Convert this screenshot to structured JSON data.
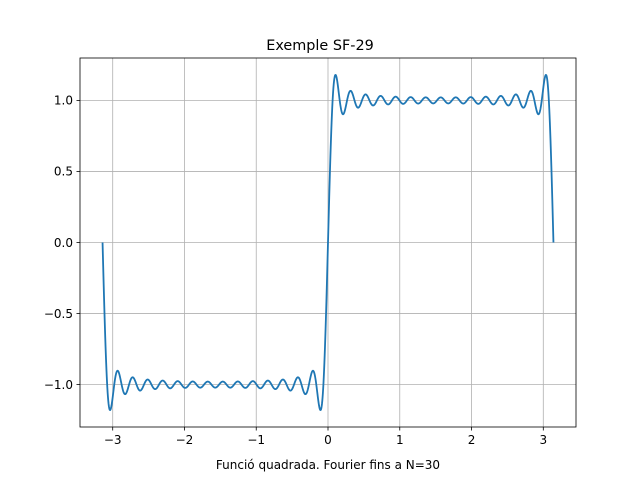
{
  "chart_data": {
    "type": "line",
    "title": "Exemple SF-29",
    "xlabel": "Funció quadrada. Fourier fins a N=30",
    "ylabel": "",
    "function": "square wave, Fourier series up to N=30",
    "harmonics_N": 30,
    "x_domain": [
      -3.14159,
      3.14159
    ],
    "xlim": [
      -3.4558,
      3.4558
    ],
    "ylim": [
      -1.2983,
      1.2983
    ],
    "xticks": [
      -3,
      -2,
      -1,
      0,
      1,
      2,
      3
    ],
    "xtick_labels": [
      "−3",
      "−2",
      "−1",
      "0",
      "1",
      "2",
      "3"
    ],
    "yticks": [
      -1.0,
      -0.5,
      0.0,
      0.5,
      1.0
    ],
    "ytick_labels": [
      "−1.0",
      "−0.5",
      "0.0",
      "0.5",
      "1.0"
    ],
    "grid": true,
    "series": [
      {
        "color": "#1f77b4",
        "points": [
          [
            -3.1416,
            0.0
          ],
          [
            -3.09,
            -1.18
          ],
          [
            -3.03,
            -0.9
          ],
          [
            -2.95,
            -1.05
          ],
          [
            -2.5,
            -1.0
          ],
          [
            -1.5,
            -0.98
          ],
          [
            -0.5,
            -1.0
          ],
          [
            -0.25,
            -0.9
          ],
          [
            -0.1,
            -1.18
          ],
          [
            0.0,
            0.0
          ],
          [
            0.1,
            1.18
          ],
          [
            0.2,
            0.9
          ],
          [
            0.5,
            1.03
          ],
          [
            1.5,
            1.0
          ],
          [
            2.5,
            1.02
          ],
          [
            2.95,
            1.05
          ],
          [
            3.04,
            1.18
          ],
          [
            3.1416,
            0.0
          ]
        ]
      }
    ]
  }
}
